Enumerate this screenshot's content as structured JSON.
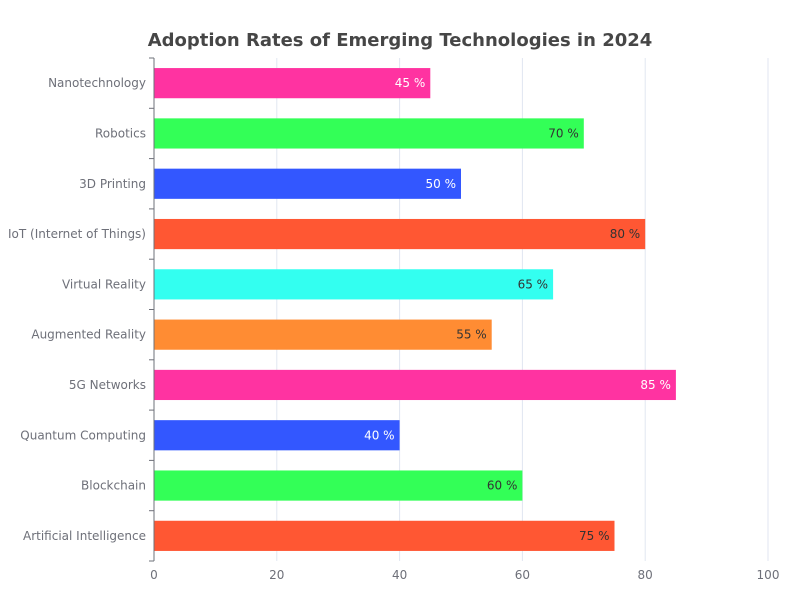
{
  "chart_data": {
    "type": "bar",
    "orientation": "horizontal",
    "title": "Adoption Rates of Emerging Technologies in 2024",
    "xlabel": "",
    "ylabel": "",
    "xlim": [
      0,
      100
    ],
    "x_ticks": [
      "0",
      "20",
      "40",
      "60",
      "80",
      "100"
    ],
    "grid": true,
    "value_suffix": " %",
    "categories": [
      "Artificial Intelligence",
      "Blockchain",
      "Quantum Computing",
      "5G Networks",
      "Augmented Reality",
      "Virtual Reality",
      "IoT (Internet of Things)",
      "3D Printing",
      "Robotics",
      "Nanotechnology"
    ],
    "values": [
      75,
      60,
      40,
      85,
      55,
      65,
      80,
      50,
      70,
      45
    ],
    "colors": [
      "#ff5733",
      "#33ff57",
      "#3357ff",
      "#ff33a1",
      "#ff8c33",
      "#33fff0",
      "#ff5733",
      "#3357ff",
      "#33ff57",
      "#ff33a1"
    ],
    "label_colors": [
      "#333333",
      "#333333",
      "#ffffff",
      "#ffffff",
      "#333333",
      "#333333",
      "#333333",
      "#ffffff",
      "#333333",
      "#ffffff"
    ]
  }
}
